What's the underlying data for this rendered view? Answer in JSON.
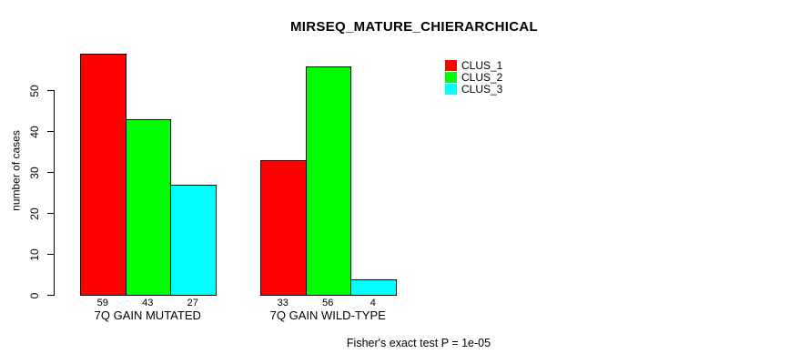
{
  "chart_data": {
    "type": "bar",
    "title": "MIRSEQ_MATURE_CHIERARCHICAL",
    "ylabel": "number of cases",
    "xlabel": "",
    "yticks": [
      0,
      10,
      20,
      30,
      40,
      50
    ],
    "ylim": [
      0,
      59
    ],
    "grid": false,
    "legend_position": "top-right",
    "categories": [
      "7Q GAIN MUTATED",
      "7Q GAIN WILD-TYPE"
    ],
    "series": [
      {
        "name": "CLUS_1",
        "color": "#FF0000",
        "values": [
          59,
          33
        ]
      },
      {
        "name": "CLUS_2",
        "color": "#00FF00",
        "values": [
          43,
          56
        ]
      },
      {
        "name": "CLUS_3",
        "color": "#00FFFF",
        "values": [
          27,
          4
        ]
      }
    ],
    "bar_value_labels": [
      [
        59,
        43,
        27
      ],
      [
        33,
        56,
        4
      ]
    ],
    "annotation": "Fisher's exact test P = 1e-05"
  },
  "colors": {
    "background": "#FFFFFF",
    "axis": "#000000",
    "bar_border": "#000000",
    "clus_1": "#FF0000",
    "clus_2": "#00FF00",
    "clus_3": "#00FFFF"
  }
}
